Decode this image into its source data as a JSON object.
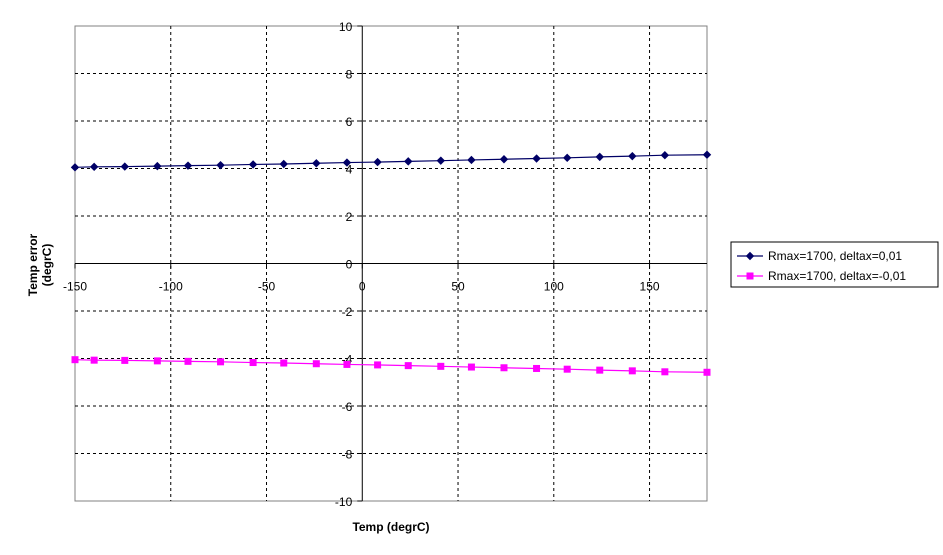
{
  "chart_data": {
    "type": "line",
    "title": "",
    "xlabel": "Temp (degrC)",
    "ylabel": [
      "Temp error",
      "(degrC)"
    ],
    "xlim": [
      -150,
      180
    ],
    "ylim": [
      -10,
      10
    ],
    "x_ticks": [
      -150,
      -100,
      -50,
      0,
      50,
      100,
      150
    ],
    "y_ticks": [
      10,
      8,
      6,
      4,
      2,
      0,
      -2,
      -4,
      -6,
      -8,
      -10
    ],
    "x_tick_labels": [
      "-150",
      "-100",
      "-50",
      "0",
      "50",
      "100",
      "150"
    ],
    "y_tick_labels": [
      "10",
      "8",
      "6",
      "4",
      "2",
      "0",
      "-2",
      "-4",
      "-6",
      "-8",
      "-10"
    ],
    "grid": true,
    "legend_position": "right",
    "x": [
      -150,
      -140,
      -124,
      -107,
      -91,
      -74,
      -57,
      -41,
      -24,
      -8,
      8,
      24,
      41,
      57,
      74,
      91,
      107,
      124,
      141,
      158,
      180
    ],
    "series": [
      {
        "name": "Rmax=1700, deltax=0,01",
        "color": "#000066",
        "marker": "diamond",
        "values": [
          4.05,
          4.07,
          4.08,
          4.1,
          4.12,
          4.14,
          4.17,
          4.19,
          4.22,
          4.25,
          4.27,
          4.3,
          4.33,
          4.36,
          4.39,
          4.42,
          4.45,
          4.49,
          4.52,
          4.56,
          4.58
        ]
      },
      {
        "name": "Rmax=1700, deltax=-0,01",
        "color": "#ff00ff",
        "marker": "square",
        "values": [
          -4.05,
          -4.07,
          -4.08,
          -4.1,
          -4.12,
          -4.14,
          -4.17,
          -4.19,
          -4.22,
          -4.25,
          -4.27,
          -4.3,
          -4.33,
          -4.36,
          -4.39,
          -4.42,
          -4.45,
          -4.49,
          -4.52,
          -4.56,
          -4.58
        ]
      }
    ]
  }
}
